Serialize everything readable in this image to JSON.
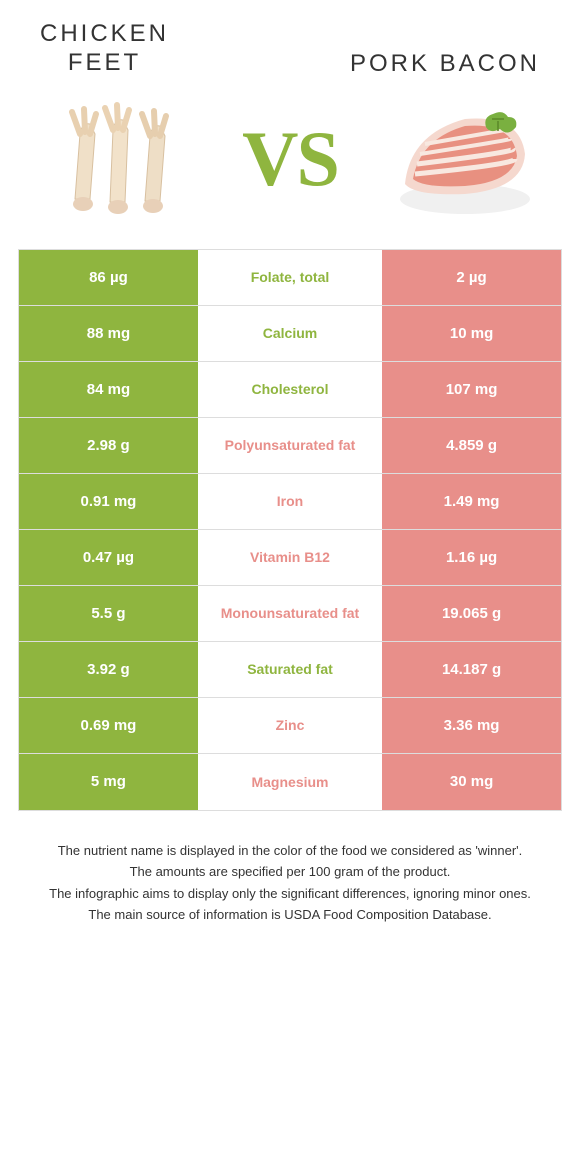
{
  "foods": {
    "left": {
      "title": "CHICKEN\nFEET"
    },
    "right": {
      "title": "PORK BACON"
    }
  },
  "vs": "VS",
  "colors": {
    "left": "#8fb53f",
    "right": "#e88f8a"
  },
  "rows": [
    {
      "left": "86 µg",
      "label": "Folate, total",
      "right": "2 µg",
      "winner": "left"
    },
    {
      "left": "88 mg",
      "label": "Calcium",
      "right": "10 mg",
      "winner": "left"
    },
    {
      "left": "84 mg",
      "label": "Cholesterol",
      "right": "107 mg",
      "winner": "left"
    },
    {
      "left": "2.98 g",
      "label": "Polyunsaturated fat",
      "right": "4.859 g",
      "winner": "right"
    },
    {
      "left": "0.91 mg",
      "label": "Iron",
      "right": "1.49 mg",
      "winner": "right"
    },
    {
      "left": "0.47 µg",
      "label": "Vitamin B12",
      "right": "1.16 µg",
      "winner": "right"
    },
    {
      "left": "5.5 g",
      "label": "Monounsaturated fat",
      "right": "19.065 g",
      "winner": "right"
    },
    {
      "left": "3.92 g",
      "label": "Saturated fat",
      "right": "14.187 g",
      "winner": "left"
    },
    {
      "left": "0.69 mg",
      "label": "Zinc",
      "right": "3.36 mg",
      "winner": "right"
    },
    {
      "left": "5 mg",
      "label": "Magnesium",
      "right": "30 mg",
      "winner": "right"
    }
  ],
  "footer": [
    "The nutrient name is displayed in the color of the food we considered as 'winner'.",
    "The amounts are specified per 100 gram of the product.",
    "The infographic aims to display only the significant differences, ignoring minor ones.",
    "The main source of information is USDA Food Composition Database."
  ]
}
